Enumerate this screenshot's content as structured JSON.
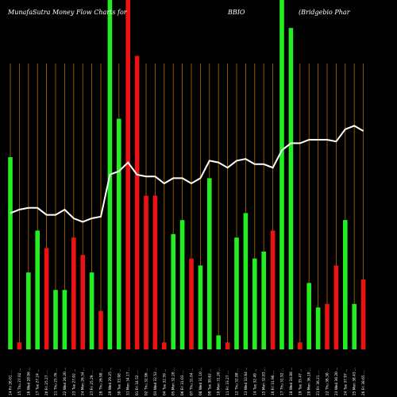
{
  "chart_data": {
    "type": "bar",
    "title": {
      "left": "MunafaSutra  Money Flow  Charts for",
      "mid": "BBIO",
      "right": "(Bridgebio  Phar"
    },
    "colors": {
      "background": "#000000",
      "inflow": "#22ee22",
      "outflow": "#ee1111",
      "line": "#ffffff",
      "grid": "#b36b00"
    },
    "grid": true,
    "categories": [
      "14 Fri 26.01 …",
      "15 Thu 27.02 …",
      "16 Wed 28.06 …",
      "17 Tue 27.24 …",
      "20 Fri 25.27 …",
      "21 Thu 25.76 …",
      "22 Wed 26.20 …",
      "23 Tue 27.02 …",
      "24 Mon 26.34 …",
      "27 Fri 25.29 …",
      "28 Thu 26.98 …",
      "29 Wed 29.25 …",
      "30 Tue 33.98 …",
      "31 Mon 34.17 …",
      "01 Fri 34.52 …",
      "02 Thu 32.96 …",
      "03 Wed 32.52 …",
      "04 Tue 32.59 …",
      "05 Mon 32.20 …",
      "06 Fri 31.03 …",
      "07 Thu 31.04 …",
      "08 Wed 31.10 …",
      "09 Tue 30.62 …",
      "10 Mon 31.20 …",
      "11 Fri 33.27 …",
      "12 Thu 32.88 …",
      "13 Wed 32.64 …",
      "14 Tue 32.49 …",
      "15 Mon 32.83 …",
      "16 Fri 31.96 …",
      "17 Thu 31.92 …",
      "18 Wed 34.88 …",
      "19 Tue 35.47 …",
      "20 Mon 36.10 …",
      "21 Fri 36.21 …",
      "22 Thu 36.30 …",
      "23 Wed 36.20 …",
      "24 Tue 37.97 …",
      "25 Mon 38.43 …",
      "26 Fri 38.65 …"
    ],
    "values": [
      55,
      2,
      22,
      34,
      29,
      17,
      17,
      32,
      27,
      22,
      11,
      100,
      66,
      100,
      84,
      44,
      44,
      2,
      33,
      37,
      26,
      24,
      49,
      4,
      2,
      32,
      39,
      26,
      28,
      34,
      100,
      92,
      2,
      19,
      12,
      13,
      24,
      37,
      13,
      20
    ],
    "flow": [
      "in",
      "out",
      "in",
      "in",
      "out",
      "in",
      "in",
      "out",
      "out",
      "in",
      "out",
      "in",
      "in",
      "out",
      "out",
      "out",
      "out",
      "out",
      "in",
      "in",
      "out",
      "in",
      "in",
      "in",
      "out",
      "in",
      "in",
      "in",
      "in",
      "out",
      "in",
      "in",
      "out",
      "in",
      "in",
      "out",
      "out",
      "in",
      "in",
      "out"
    ],
    "line_values": [
      39,
      40,
      40.5,
      40.5,
      38.5,
      38.5,
      40,
      37.5,
      36.5,
      37.5,
      38,
      50,
      51,
      53.5,
      50,
      49.5,
      49.5,
      47.5,
      49,
      49,
      47.5,
      49,
      54,
      53.5,
      52,
      54,
      54.5,
      53,
      53,
      52,
      57,
      59,
      59,
      60,
      60,
      60,
      59.5,
      63,
      64,
      62.5
    ],
    "ylim": [
      0,
      100
    ]
  }
}
